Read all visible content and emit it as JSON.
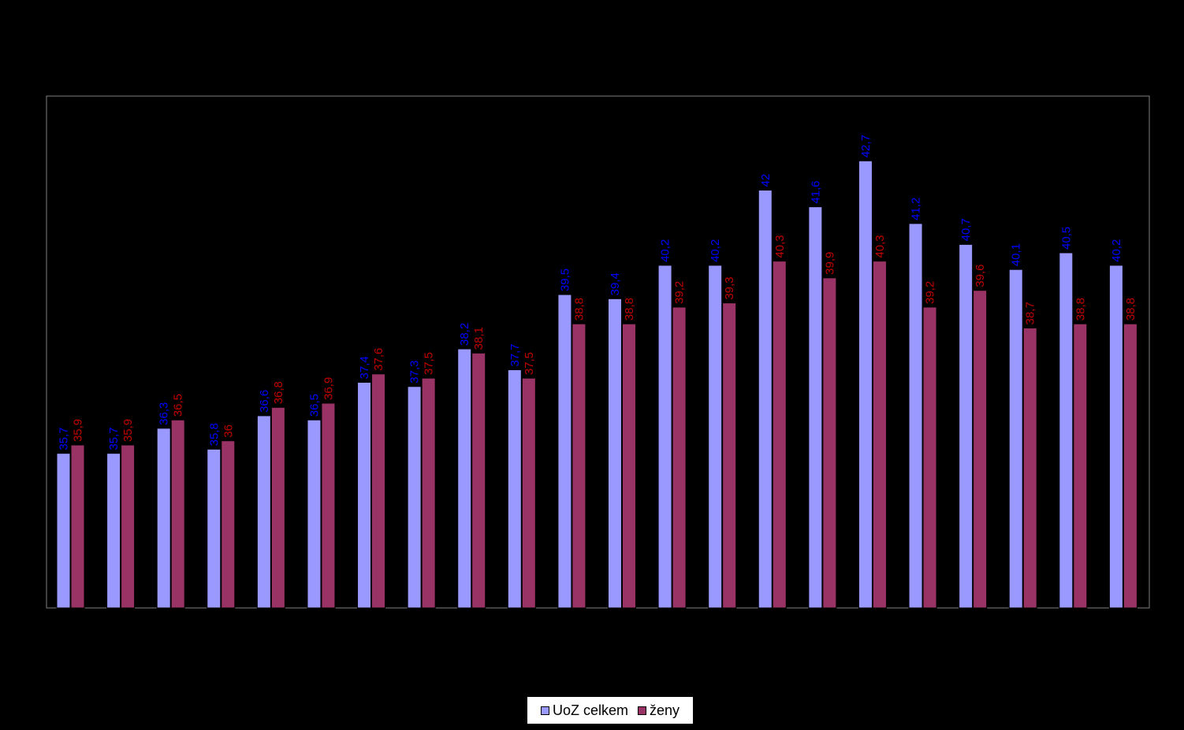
{
  "chart_data": {
    "type": "bar",
    "title": "",
    "xlabel": "",
    "ylabel": "",
    "ylim": [
      32,
      44.25
    ],
    "grid": false,
    "legend_position": "bottom-center",
    "categories": [
      "",
      "",
      "",
      "",
      "",
      "",
      "",
      "",
      "",
      "",
      "",
      "",
      "",
      "",
      "",
      "",
      "",
      "",
      "",
      "",
      "",
      ""
    ],
    "series": [
      {
        "name": "UoZ celkem",
        "color": "#9999FF",
        "label_color": "#0000FF",
        "labels": [
          "35,7",
          "35,7",
          "36,3",
          "35,8",
          "36,6",
          "36,5",
          "37,4",
          "37,3",
          "38,2",
          "37,7",
          "39,5",
          "39,4",
          "40,2",
          "40,2",
          "42",
          "41,6",
          "42,7",
          "41,2",
          "40,7",
          "40,1",
          "40,5",
          "40,2"
        ],
        "values": [
          35.7,
          35.7,
          36.3,
          35.8,
          36.6,
          36.5,
          37.4,
          37.3,
          38.2,
          37.7,
          39.5,
          39.4,
          40.2,
          40.2,
          42.0,
          41.6,
          42.7,
          41.2,
          40.7,
          40.1,
          40.5,
          40.2
        ]
      },
      {
        "name": "ženy",
        "color": "#993366",
        "label_color": "#C00000",
        "labels": [
          "35,9",
          "35,9",
          "36,5",
          "36",
          "36,8",
          "36,9",
          "37,6",
          "37,5",
          "38,1",
          "37,5",
          "38,8",
          "38,8",
          "39,2",
          "39,3",
          "40,3",
          "39,9",
          "40,3",
          "39,2",
          "39,6",
          "38,7",
          "38,8",
          "38,8"
        ],
        "values": [
          35.9,
          35.9,
          36.5,
          36.0,
          36.8,
          36.9,
          37.6,
          37.5,
          38.1,
          37.5,
          38.8,
          38.8,
          39.2,
          39.3,
          40.3,
          39.9,
          40.3,
          39.2,
          39.6,
          38.7,
          38.8,
          38.8
        ]
      }
    ]
  },
  "legend": {
    "items": [
      {
        "label": "UoZ celkem",
        "color": "#9999FF"
      },
      {
        "label": "ženy",
        "color": "#993366"
      }
    ]
  }
}
